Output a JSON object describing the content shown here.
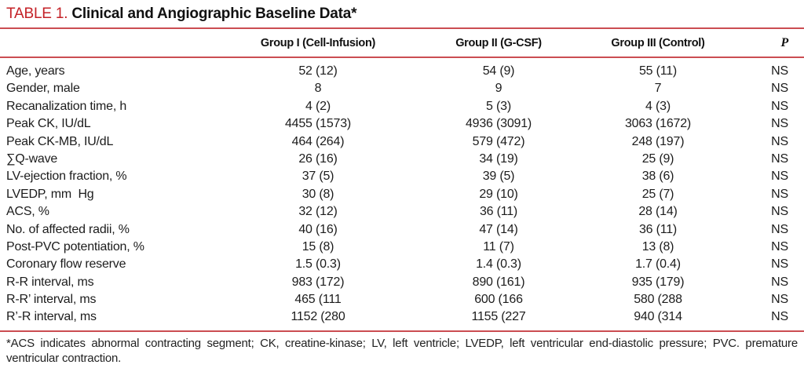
{
  "table": {
    "label": "TABLE 1.",
    "title": "Clinical and Angiographic Baseline Data*",
    "columns": {
      "group1": "Group I (Cell-Infusion)",
      "group2": "Group II (G-CSF)",
      "group3": "Group III (Control)",
      "p": "P"
    },
    "rows": [
      {
        "label": "Age, years",
        "g1": "52 (12)",
        "g2": "54 (9)",
        "g3": "55 (11)",
        "p": "NS"
      },
      {
        "label": "Gender, male",
        "g1": "8",
        "g2": "9",
        "g3": "7",
        "p": "NS"
      },
      {
        "label": "Recanalization time, h",
        "g1": "4 (2)",
        "g2": "5 (3)",
        "g3": "4 (3)",
        "p": "NS"
      },
      {
        "label": "Peak CK, IU/dL",
        "g1": "4455 (1573)",
        "g2": "4936 (3091)",
        "g3": "3063 (1672)",
        "p": "NS"
      },
      {
        "label": "Peak CK-MB, IU/dL",
        "g1": "464 (264)",
        "g2": "579 (472)",
        "g3": "248 (197)",
        "p": "NS"
      },
      {
        "label": "∑Q-wave",
        "g1": "26 (16)",
        "g2": "34 (19)",
        "g3": "25 (9)",
        "p": "NS"
      },
      {
        "label": "LV-ejection fraction, %",
        "g1": "37 (5)",
        "g2": "39 (5)",
        "g3": "38 (6)",
        "p": "NS"
      },
      {
        "label": "LVEDP, mm  Hg",
        "g1": "30 (8)",
        "g2": "29 (10)",
        "g3": "25 (7)",
        "p": "NS"
      },
      {
        "label": "ACS, %",
        "g1": "32 (12)",
        "g2": "36 (11)",
        "g3": "28 (14)",
        "p": "NS"
      },
      {
        "label": "No. of affected radii, %",
        "g1": "40 (16)",
        "g2": "47 (14)",
        "g3": "36 (11)",
        "p": "NS"
      },
      {
        "label": "Post-PVC potentiation, %",
        "g1": "15 (8)",
        "g2": "11 (7)",
        "g3": "13 (8)",
        "p": "NS"
      },
      {
        "label": "Coronary flow reserve",
        "g1": "1.5 (0.3)",
        "g2": "1.4 (0.3)",
        "g3": "1.7 (0.4)",
        "p": "NS"
      },
      {
        "label": "R-R interval, ms",
        "g1": "983 (172)",
        "g2": "890 (161)",
        "g3": "935 (179)",
        "p": "NS"
      },
      {
        "label": "R-R’ interval, ms",
        "g1": "465 (111",
        "g2": "600 (166",
        "g3": "580 (288",
        "p": "NS"
      },
      {
        "label": "R’-R interval, ms",
        "g1": "1152 (280",
        "g2": "1155 (227",
        "g3": "940 (314",
        "p": "NS"
      }
    ],
    "footnote": "*ACS indicates abnormal contracting segment; CK, creatine-kinase; LV, left ventricle; LVEDP, left ventricular end-diastolic pressure; PVC. premature ventricular contraction.",
    "colors": {
      "accent_red": "#c42127",
      "rule_red": "#cb4d52",
      "text": "#1c1c1c"
    }
  }
}
